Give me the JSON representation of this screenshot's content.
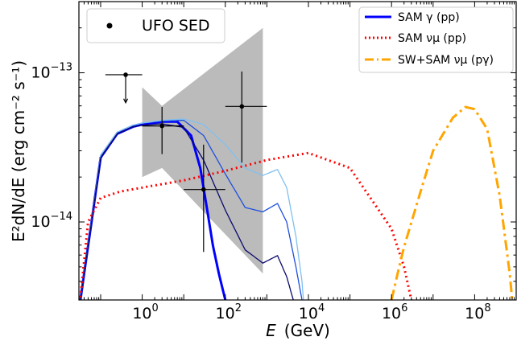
{
  "chart_data": {
    "type": "line",
    "x_scale": "log",
    "y_scale": "log",
    "xlim": [
      0.03,
      1000000000
    ],
    "ylim": [
      3e-15,
      3e-13
    ],
    "xlabel_sym": "E",
    "xlabel_unit": "(GeV)",
    "ylabel": "E²dN/dE (erg cm⁻² s⁻¹)",
    "x_ticks": [
      {
        "value": 1,
        "base": "10",
        "exp": "0"
      },
      {
        "value": 100,
        "base": "10",
        "exp": "2"
      },
      {
        "value": 10000,
        "base": "10",
        "exp": "4"
      },
      {
        "value": 1000000,
        "base": "10",
        "exp": "6"
      },
      {
        "value": 100000000,
        "base": "10",
        "exp": "8"
      }
    ],
    "y_ticks": [
      {
        "value": 1e-14,
        "base": "10",
        "exp": "−14"
      },
      {
        "value": 1e-13,
        "base": "10",
        "exp": "−13"
      }
    ],
    "legend_sed": {
      "label": "UFO SED",
      "placement": "top-left"
    },
    "legend_models": {
      "placement": "top-right",
      "entries": [
        {
          "label": "SAM γ (pp)",
          "color": "#0000ff",
          "dash": "solid"
        },
        {
          "label": "SAM νμ (pp)",
          "color": "#ff0000",
          "dash": "dotted"
        },
        {
          "label": "SW+SAM νμ (pγ)",
          "color": "#ffa500",
          "dash": "dashdot"
        }
      ]
    },
    "band": {
      "color": "#bbbbbb",
      "upper": [
        [
          1,
          8e-14
        ],
        [
          3,
          6e-14
        ],
        [
          800,
          2e-13
        ]
      ],
      "lower": [
        [
          800,
          4.5e-15
        ],
        [
          3,
          2.3e-14
        ],
        [
          1,
          2e-14
        ]
      ]
    },
    "sed_points": [
      {
        "x": 0.4,
        "y": 9.7e-14,
        "xlo": 0.13,
        "xhi": 1.0,
        "ylo": null,
        "yhi": null,
        "upper_limit": true,
        "ul_to": 6.3e-14
      },
      {
        "x": 3.0,
        "y": 4.4e-14,
        "xlo": 1.0,
        "xhi": 10.0,
        "ylo": 2.85e-14,
        "yhi": 5.9e-14,
        "upper_limit": false
      },
      {
        "x": 30.0,
        "y": 1.65e-14,
        "xlo": 10.0,
        "xhi": 100.0,
        "ylo": 6.3e-15,
        "yhi": 3.3e-14,
        "upper_limit": false
      },
      {
        "x": 250.0,
        "y": 5.95e-14,
        "xlo": 100.0,
        "xhi": 1000.0,
        "ylo": 2.5e-14,
        "yhi": 1.02e-13,
        "upper_limit": false
      }
    ],
    "series": [
      {
        "name": "SAM γ (pp)",
        "color": "#0000ff",
        "dash": "solid",
        "width": 3,
        "points": [
          [
            0.03,
            2.55e-15
          ],
          [
            0.1,
            2.7e-14
          ],
          [
            0.25,
            3.9e-14
          ],
          [
            0.6,
            4.35e-14
          ],
          [
            1,
            4.5e-14
          ],
          [
            3,
            4.7e-14
          ],
          [
            7,
            4.7e-14
          ],
          [
            15,
            3.8e-14
          ],
          [
            25,
            2.3e-14
          ],
          [
            35,
            1.3e-14
          ],
          [
            50,
            7e-15
          ],
          [
            70,
            4.5e-15
          ],
          [
            100,
            3e-15
          ],
          [
            110,
            2.5e-15
          ]
        ]
      },
      {
        "dash": "solid",
        "color": "#1e4fe0",
        "width": 1.3,
        "points": [
          [
            0.03,
            2.55e-15
          ],
          [
            0.1,
            2.8e-14
          ],
          [
            0.25,
            4e-14
          ],
          [
            0.6,
            4.45e-14
          ],
          [
            1,
            4.6e-14
          ],
          [
            3,
            4.75e-14
          ],
          [
            10,
            4.8e-14
          ],
          [
            30,
            3.8e-14
          ],
          [
            100,
            2.1e-14
          ],
          [
            300,
            1.25e-14
          ],
          [
            800,
            1.17e-14
          ],
          [
            1800,
            1.33e-14
          ],
          [
            3000,
            1e-14
          ],
          [
            5000,
            5e-15
          ],
          [
            7000,
            3e-15
          ],
          [
            8000,
            2.5e-15
          ]
        ]
      },
      {
        "dash": "solid",
        "color": "#80c0f0",
        "width": 1.3,
        "points": [
          [
            0.03,
            2.55e-15
          ],
          [
            0.1,
            2.8e-14
          ],
          [
            0.25,
            4e-14
          ],
          [
            0.6,
            4.45e-14
          ],
          [
            1,
            4.6e-14
          ],
          [
            3,
            4.8e-14
          ],
          [
            10,
            4.9e-14
          ],
          [
            30,
            4.5e-14
          ],
          [
            100,
            3.3e-14
          ],
          [
            300,
            2.3e-14
          ],
          [
            800,
            2.05e-14
          ],
          [
            1800,
            2.25e-14
          ],
          [
            3000,
            1.7e-14
          ],
          [
            5000,
            8e-15
          ],
          [
            7000,
            4e-15
          ],
          [
            8000,
            2.5e-15
          ]
        ]
      },
      {
        "dash": "solid",
        "color": "#0a0a6e",
        "width": 1.3,
        "points": [
          [
            0.03,
            2.55e-15
          ],
          [
            0.1,
            2.7e-14
          ],
          [
            0.25,
            3.9e-14
          ],
          [
            0.6,
            4.35e-14
          ],
          [
            1,
            4.45e-14
          ],
          [
            3,
            4.55e-14
          ],
          [
            10,
            4.3e-14
          ],
          [
            30,
            2.6e-14
          ],
          [
            100,
            1.2e-14
          ],
          [
            300,
            6.5e-15
          ],
          [
            800,
            5.3e-15
          ],
          [
            1800,
            5.95e-15
          ],
          [
            3000,
            4.3e-15
          ],
          [
            5000,
            2.6e-15
          ]
        ]
      },
      {
        "name": "SAM νμ (pp)",
        "color": "#ff0000",
        "dash": "dotted",
        "width": 3,
        "points": [
          [
            0.03,
            2.5e-15
          ],
          [
            0.05,
            1e-14
          ],
          [
            0.1,
            1.45e-14
          ],
          [
            0.3,
            1.6e-14
          ],
          [
            1,
            1.7e-14
          ],
          [
            10,
            1.9e-14
          ],
          [
            100,
            2.2e-14
          ],
          [
            1000,
            2.6e-14
          ],
          [
            10000,
            2.9e-14
          ],
          [
            100000,
            2.3e-14
          ],
          [
            1000000,
            9e-15
          ],
          [
            2000000,
            5e-15
          ],
          [
            3000000,
            3e-15
          ]
        ]
      },
      {
        "name": "SW+SAM νμ (pγ)",
        "color": "#ffa500",
        "dash": "dashdot",
        "width": 3,
        "points": [
          [
            1000000,
            3e-15
          ],
          [
            1400000,
            4.5e-15
          ],
          [
            2000000,
            6.8e-15
          ],
          [
            5000000,
            1.6e-14
          ],
          [
            10000000,
            3e-14
          ],
          [
            30000000,
            5e-14
          ],
          [
            60000000,
            5.9e-14
          ],
          [
            100000000,
            5.7e-14
          ],
          [
            200000000,
            4.2e-14
          ],
          [
            400000000,
            1.5e-14
          ],
          [
            700000000,
            4.5e-15
          ],
          [
            800000000,
            3e-15
          ]
        ]
      }
    ]
  }
}
